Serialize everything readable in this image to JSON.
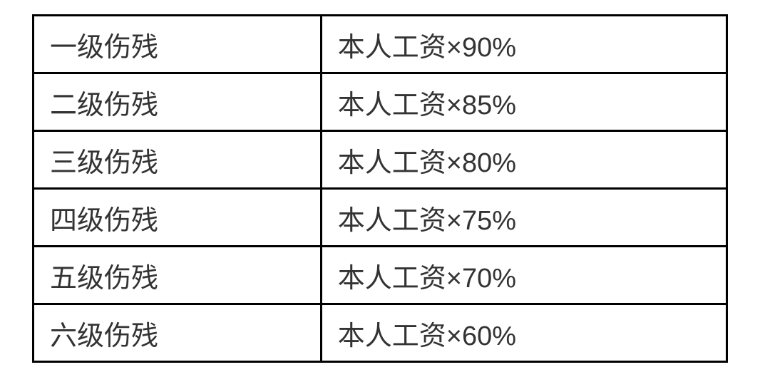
{
  "table": {
    "type": "table",
    "border_color": "#000000",
    "border_width": 3,
    "background_color": "#ffffff",
    "text_color": "#333333",
    "font_size": 38,
    "font_weight": 400,
    "columns": [
      {
        "width_percent": 41.5,
        "align": "left"
      },
      {
        "width_percent": 58.5,
        "align": "left"
      }
    ],
    "rows": [
      {
        "level": "一级伤残",
        "formula": "本人工资×90%"
      },
      {
        "level": "二级伤残",
        "formula": "本人工资×85%"
      },
      {
        "level": "三级伤残",
        "formula": "本人工资×80%"
      },
      {
        "level": "四级伤残",
        "formula": "本人工资×75%"
      },
      {
        "level": "五级伤残",
        "formula": "本人工资×70%"
      },
      {
        "level": "六级伤残",
        "formula": "本人工资×60%"
      }
    ]
  }
}
